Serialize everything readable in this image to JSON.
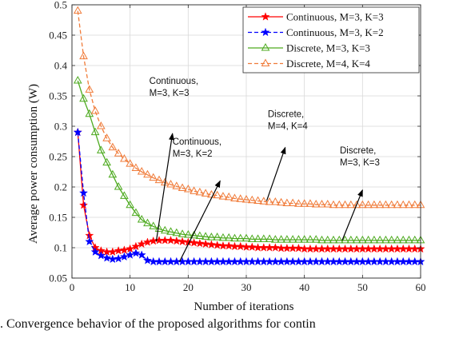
{
  "chart_data": {
    "type": "line",
    "xlabel": "Number of iterations",
    "ylabel": "Average power consumption (W)",
    "xlim": [
      0,
      60
    ],
    "ylim": [
      0.05,
      0.5
    ],
    "xticks": [
      0,
      10,
      20,
      30,
      40,
      50,
      60
    ],
    "yticks": [
      0.05,
      0.1,
      0.15,
      0.2,
      0.25,
      0.3,
      0.35,
      0.4,
      0.45,
      0.5
    ],
    "grid": true,
    "legend_position": "top-right",
    "series": [
      {
        "name": "Continuous, M=3, K=3",
        "color": "#ff0000",
        "line_style": "solid",
        "marker": "star",
        "x": [
          1,
          2,
          3,
          4,
          5,
          6,
          7,
          8,
          9,
          10,
          11,
          12,
          13,
          14,
          15,
          16,
          17,
          18,
          19,
          20,
          21,
          22,
          23,
          24,
          25,
          26,
          27,
          28,
          29,
          30,
          31,
          32,
          33,
          34,
          35,
          36,
          37,
          38,
          39,
          40,
          41,
          42,
          43,
          44,
          45,
          46,
          47,
          48,
          49,
          50,
          51,
          52,
          53,
          54,
          55,
          56,
          57,
          58,
          59,
          60
        ],
        "values": [
          0.29,
          0.17,
          0.12,
          0.1,
          0.095,
          0.093,
          0.093,
          0.095,
          0.096,
          0.098,
          0.102,
          0.106,
          0.109,
          0.111,
          0.112,
          0.112,
          0.112,
          0.111,
          0.11,
          0.109,
          0.108,
          0.107,
          0.106,
          0.105,
          0.104,
          0.103,
          0.103,
          0.102,
          0.102,
          0.101,
          0.101,
          0.1,
          0.1,
          0.1,
          0.1,
          0.099,
          0.099,
          0.099,
          0.099,
          0.098,
          0.098,
          0.098,
          0.098,
          0.098,
          0.098,
          0.098,
          0.098,
          0.098,
          0.098,
          0.098,
          0.098,
          0.098,
          0.098,
          0.098,
          0.098,
          0.098,
          0.098,
          0.098,
          0.098,
          0.098
        ]
      },
      {
        "name": "Continuous, M=3, K=2",
        "color": "#0000ff",
        "line_style": "dashed",
        "marker": "star",
        "x": [
          1,
          2,
          3,
          4,
          5,
          6,
          7,
          8,
          9,
          10,
          11,
          12,
          13,
          14,
          15,
          16,
          17,
          18,
          19,
          20,
          21,
          22,
          23,
          24,
          25,
          26,
          27,
          28,
          29,
          30,
          31,
          32,
          33,
          34,
          35,
          36,
          37,
          38,
          39,
          40,
          41,
          42,
          43,
          44,
          45,
          46,
          47,
          48,
          49,
          50,
          51,
          52,
          53,
          54,
          55,
          56,
          57,
          58,
          59,
          60
        ],
        "values": [
          0.29,
          0.19,
          0.11,
          0.093,
          0.087,
          0.083,
          0.081,
          0.082,
          0.085,
          0.088,
          0.091,
          0.088,
          0.079,
          0.077,
          0.077,
          0.077,
          0.077,
          0.077,
          0.077,
          0.077,
          0.077,
          0.077,
          0.077,
          0.077,
          0.077,
          0.077,
          0.077,
          0.077,
          0.077,
          0.077,
          0.077,
          0.077,
          0.077,
          0.077,
          0.077,
          0.077,
          0.077,
          0.077,
          0.077,
          0.077,
          0.077,
          0.077,
          0.077,
          0.077,
          0.077,
          0.077,
          0.077,
          0.077,
          0.077,
          0.077,
          0.077,
          0.077,
          0.077,
          0.077,
          0.077,
          0.077,
          0.077,
          0.077,
          0.077,
          0.077
        ]
      },
      {
        "name": "Discrete, M=3, K=3",
        "color": "#4daa1f",
        "line_style": "solid",
        "marker": "triangle",
        "x": [
          1,
          2,
          3,
          4,
          5,
          6,
          7,
          8,
          9,
          10,
          11,
          12,
          13,
          14,
          15,
          16,
          17,
          18,
          19,
          20,
          21,
          22,
          23,
          24,
          25,
          26,
          27,
          28,
          29,
          30,
          31,
          32,
          33,
          34,
          35,
          36,
          37,
          38,
          39,
          40,
          41,
          42,
          43,
          44,
          45,
          46,
          47,
          48,
          49,
          50,
          51,
          52,
          53,
          54,
          55,
          56,
          57,
          58,
          59,
          60
        ],
        "values": [
          0.375,
          0.345,
          0.32,
          0.29,
          0.26,
          0.24,
          0.22,
          0.2,
          0.185,
          0.17,
          0.157,
          0.146,
          0.14,
          0.135,
          0.131,
          0.128,
          0.126,
          0.124,
          0.122,
          0.121,
          0.12,
          0.119,
          0.118,
          0.117,
          0.117,
          0.116,
          0.116,
          0.115,
          0.115,
          0.115,
          0.114,
          0.114,
          0.114,
          0.114,
          0.113,
          0.113,
          0.113,
          0.113,
          0.113,
          0.113,
          0.113,
          0.113,
          0.112,
          0.112,
          0.112,
          0.112,
          0.112,
          0.112,
          0.112,
          0.112,
          0.112,
          0.112,
          0.112,
          0.112,
          0.112,
          0.112,
          0.112,
          0.112,
          0.112,
          0.112
        ]
      },
      {
        "name": "Discrete, M=4, K=4",
        "color": "#f07b39",
        "line_style": "dashed",
        "marker": "triangle",
        "x": [
          1,
          2,
          3,
          4,
          5,
          6,
          7,
          8,
          9,
          10,
          11,
          12,
          13,
          14,
          15,
          16,
          17,
          18,
          19,
          20,
          21,
          22,
          23,
          24,
          25,
          26,
          27,
          28,
          29,
          30,
          31,
          32,
          33,
          34,
          35,
          36,
          37,
          38,
          39,
          40,
          41,
          42,
          43,
          44,
          45,
          46,
          47,
          48,
          49,
          50,
          51,
          52,
          53,
          54,
          55,
          56,
          57,
          58,
          59,
          60
        ],
        "values": [
          0.49,
          0.415,
          0.36,
          0.325,
          0.3,
          0.28,
          0.265,
          0.255,
          0.246,
          0.238,
          0.231,
          0.225,
          0.22,
          0.215,
          0.211,
          0.207,
          0.204,
          0.201,
          0.198,
          0.196,
          0.193,
          0.191,
          0.189,
          0.187,
          0.186,
          0.184,
          0.183,
          0.181,
          0.18,
          0.179,
          0.178,
          0.177,
          0.176,
          0.175,
          0.175,
          0.174,
          0.173,
          0.173,
          0.172,
          0.172,
          0.172,
          0.171,
          0.171,
          0.171,
          0.17,
          0.17,
          0.17,
          0.17,
          0.17,
          0.17,
          0.17,
          0.17,
          0.17,
          0.17,
          0.17,
          0.17,
          0.17,
          0.17,
          0.17,
          0.17
        ]
      }
    ],
    "annotations": [
      {
        "lines": [
          "Continuous,",
          "M=3, K=3"
        ],
        "text_x": 13.3,
        "text_y": 0.37,
        "arrow_from_x": 14.5,
        "arrow_from_y": 0.11,
        "arrow_to_x": 17.3,
        "arrow_to_y": 0.288
      },
      {
        "lines": [
          "Continuous,",
          "M=3, K=2"
        ],
        "text_x": 17.3,
        "text_y": 0.27,
        "arrow_from_x": 18.5,
        "arrow_from_y": 0.077,
        "arrow_to_x": 25.5,
        "arrow_to_y": 0.21
      },
      {
        "lines": [
          "Discrete,",
          "M=4, K=4"
        ],
        "text_x": 33.7,
        "text_y": 0.315,
        "arrow_from_x": 33.5,
        "arrow_from_y": 0.177,
        "arrow_to_x": 36.7,
        "arrow_to_y": 0.265
      },
      {
        "lines": [
          "Discrete,",
          "M=3, K=3"
        ],
        "text_x": 46.1,
        "text_y": 0.255,
        "arrow_from_x": 46.5,
        "arrow_from_y": 0.112,
        "arrow_to_x": 50.0,
        "arrow_to_y": 0.195
      }
    ]
  },
  "caption": {
    "text": ".  Convergence behavior of the proposed algorithms for contin"
  }
}
